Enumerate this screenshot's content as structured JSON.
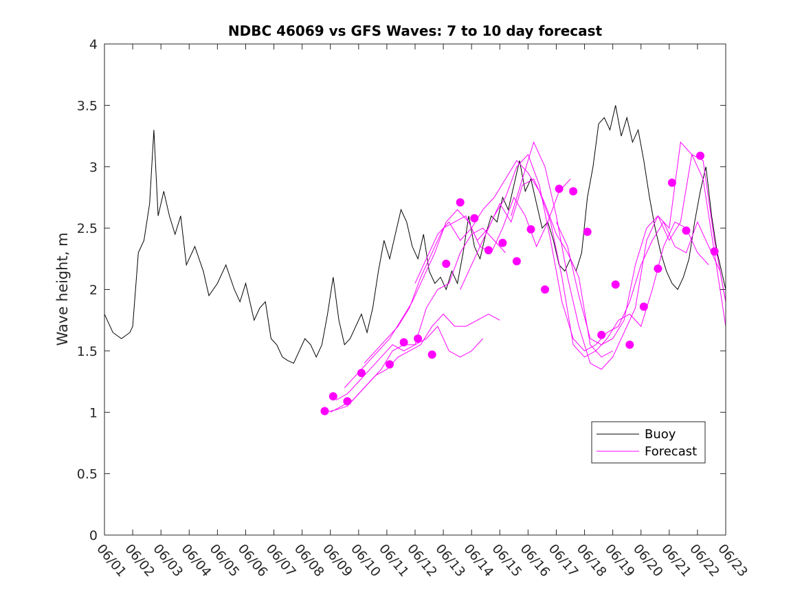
{
  "chart_data": {
    "type": "line",
    "title": "NDBC 46069 vs GFS Waves: 7 to 10 day forecast",
    "xlabel": "",
    "ylabel": "Wave height, m",
    "ylim": [
      0,
      4
    ],
    "xlim": [
      "06/01",
      "06/23"
    ],
    "xtick_labels": [
      "06/01",
      "06/02",
      "06/03",
      "06/04",
      "06/05",
      "06/06",
      "06/07",
      "06/08",
      "06/09",
      "06/10",
      "06/11",
      "06/12",
      "06/13",
      "06/14",
      "06/15",
      "06/16",
      "06/17",
      "06/18",
      "06/19",
      "06/20",
      "06/21",
      "06/22",
      "06/23"
    ],
    "ytick_labels": [
      "0",
      "0.5",
      "1",
      "1.5",
      "2",
      "2.5",
      "3",
      "3.5",
      "4"
    ],
    "yticks": [
      0,
      0.5,
      1,
      1.5,
      2,
      2.5,
      3,
      3.5,
      4
    ],
    "grid": false,
    "legend": {
      "position": "bottom-right",
      "entries": [
        "Buoy",
        "Forecast"
      ]
    },
    "colors": {
      "buoy": "#000000",
      "forecast": "#ff00ff",
      "axis": "#262626"
    },
    "buoy_series": {
      "name": "Buoy",
      "points": [
        [
          0.0,
          1.8
        ],
        [
          0.3,
          1.65
        ],
        [
          0.6,
          1.6
        ],
        [
          0.9,
          1.65
        ],
        [
          1.0,
          1.7
        ],
        [
          1.2,
          2.3
        ],
        [
          1.4,
          2.4
        ],
        [
          1.6,
          2.7
        ],
        [
          1.75,
          3.3
        ],
        [
          1.9,
          2.6
        ],
        [
          2.1,
          2.8
        ],
        [
          2.3,
          2.6
        ],
        [
          2.5,
          2.45
        ],
        [
          2.7,
          2.6
        ],
        [
          2.9,
          2.2
        ],
        [
          3.2,
          2.35
        ],
        [
          3.5,
          2.15
        ],
        [
          3.7,
          1.95
        ],
        [
          4.0,
          2.05
        ],
        [
          4.3,
          2.2
        ],
        [
          4.6,
          2.0
        ],
        [
          4.8,
          1.9
        ],
        [
          5.0,
          2.05
        ],
        [
          5.3,
          1.75
        ],
        [
          5.5,
          1.85
        ],
        [
          5.7,
          1.9
        ],
        [
          5.9,
          1.6
        ],
        [
          6.1,
          1.55
        ],
        [
          6.3,
          1.45
        ],
        [
          6.5,
          1.42
        ],
        [
          6.7,
          1.4
        ],
        [
          6.9,
          1.5
        ],
        [
          7.1,
          1.6
        ],
        [
          7.3,
          1.55
        ],
        [
          7.5,
          1.45
        ],
        [
          7.7,
          1.55
        ],
        [
          7.9,
          1.8
        ],
        [
          8.1,
          2.1
        ],
        [
          8.3,
          1.75
        ],
        [
          8.5,
          1.55
        ],
        [
          8.7,
          1.6
        ],
        [
          8.9,
          1.7
        ],
        [
          9.1,
          1.8
        ],
        [
          9.3,
          1.65
        ],
        [
          9.5,
          1.85
        ],
        [
          9.7,
          2.15
        ],
        [
          9.9,
          2.4
        ],
        [
          10.1,
          2.25
        ],
        [
          10.3,
          2.45
        ],
        [
          10.5,
          2.65
        ],
        [
          10.7,
          2.55
        ],
        [
          10.9,
          2.35
        ],
        [
          11.1,
          2.25
        ],
        [
          11.3,
          2.45
        ],
        [
          11.5,
          2.15
        ],
        [
          11.7,
          2.05
        ],
        [
          11.9,
          2.1
        ],
        [
          12.1,
          2.0
        ],
        [
          12.3,
          2.15
        ],
        [
          12.5,
          2.05
        ],
        [
          12.7,
          2.3
        ],
        [
          12.9,
          2.6
        ],
        [
          13.1,
          2.35
        ],
        [
          13.3,
          2.25
        ],
        [
          13.5,
          2.45
        ],
        [
          13.7,
          2.6
        ],
        [
          13.9,
          2.55
        ],
        [
          14.1,
          2.75
        ],
        [
          14.3,
          2.65
        ],
        [
          14.5,
          2.85
        ],
        [
          14.7,
          3.05
        ],
        [
          14.9,
          2.8
        ],
        [
          15.1,
          2.9
        ],
        [
          15.3,
          2.7
        ],
        [
          15.5,
          2.5
        ],
        [
          15.7,
          2.55
        ],
        [
          15.9,
          2.4
        ],
        [
          16.1,
          2.2
        ],
        [
          16.3,
          2.15
        ],
        [
          16.5,
          2.25
        ],
        [
          16.7,
          2.15
        ],
        [
          16.9,
          2.3
        ],
        [
          17.1,
          2.75
        ],
        [
          17.3,
          3.0
        ],
        [
          17.5,
          3.35
        ],
        [
          17.7,
          3.4
        ],
        [
          17.9,
          3.3
        ],
        [
          18.1,
          3.5
        ],
        [
          18.3,
          3.25
        ],
        [
          18.5,
          3.4
        ],
        [
          18.7,
          3.2
        ],
        [
          18.9,
          3.3
        ],
        [
          19.1,
          3.05
        ],
        [
          19.3,
          2.75
        ],
        [
          19.5,
          2.5
        ],
        [
          19.7,
          2.3
        ],
        [
          19.9,
          2.15
        ],
        [
          20.1,
          2.05
        ],
        [
          20.3,
          2.0
        ],
        [
          20.5,
          2.1
        ],
        [
          20.7,
          2.25
        ],
        [
          20.9,
          2.55
        ],
        [
          21.1,
          2.8
        ],
        [
          21.3,
          3.0
        ],
        [
          21.5,
          2.6
        ],
        [
          21.7,
          2.3
        ],
        [
          21.9,
          2.1
        ],
        [
          22.0,
          2.0
        ]
      ]
    },
    "forecast_series": [
      {
        "points": [
          [
            7.8,
            1.0
          ],
          [
            8.2,
            1.02
          ],
          [
            8.6,
            1.05
          ],
          [
            9.0,
            1.15
          ],
          [
            9.4,
            1.25
          ],
          [
            9.8,
            1.35
          ],
          [
            10.2,
            1.5
          ],
          [
            10.6,
            1.55
          ],
          [
            11.0,
            1.55
          ],
          [
            11.4,
            1.6
          ],
          [
            11.8,
            1.7
          ],
          [
            12.2,
            1.5
          ],
          [
            12.6,
            1.45
          ],
          [
            13.0,
            1.5
          ],
          [
            13.4,
            1.6
          ]
        ]
      },
      {
        "points": [
          [
            8.0,
            1.0
          ],
          [
            8.4,
            1.05
          ],
          [
            8.8,
            1.1
          ],
          [
            9.2,
            1.2
          ],
          [
            9.6,
            1.3
          ],
          [
            10.0,
            1.35
          ],
          [
            10.4,
            1.45
          ],
          [
            10.8,
            1.5
          ],
          [
            11.2,
            1.55
          ],
          [
            11.6,
            1.7
          ],
          [
            12.0,
            1.8
          ],
          [
            12.4,
            1.7
          ],
          [
            12.8,
            1.7
          ],
          [
            13.2,
            1.75
          ],
          [
            13.6,
            1.8
          ],
          [
            14.0,
            1.75
          ]
        ]
      },
      {
        "points": [
          [
            8.2,
            1.1
          ],
          [
            8.6,
            1.15
          ],
          [
            9.0,
            1.25
          ],
          [
            9.4,
            1.35
          ],
          [
            9.8,
            1.45
          ],
          [
            10.2,
            1.55
          ],
          [
            10.6,
            1.5
          ],
          [
            11.0,
            1.55
          ],
          [
            11.4,
            1.85
          ],
          [
            11.8,
            2.0
          ],
          [
            12.2,
            2.05
          ],
          [
            12.6,
            2.3
          ],
          [
            13.0,
            2.45
          ],
          [
            13.4,
            2.5
          ],
          [
            13.8,
            2.4
          ],
          [
            14.2,
            2.3
          ]
        ]
      },
      {
        "points": [
          [
            8.5,
            1.2
          ],
          [
            8.9,
            1.3
          ],
          [
            9.3,
            1.4
          ],
          [
            9.7,
            1.5
          ],
          [
            10.1,
            1.6
          ],
          [
            10.5,
            1.75
          ],
          [
            10.9,
            1.9
          ],
          [
            11.3,
            2.1
          ],
          [
            11.7,
            2.3
          ],
          [
            12.1,
            2.55
          ],
          [
            12.5,
            2.65
          ],
          [
            12.9,
            2.55
          ],
          [
            13.3,
            2.35
          ],
          [
            13.7,
            2.3
          ],
          [
            14.1,
            2.5
          ],
          [
            14.5,
            2.75
          ],
          [
            14.9,
            2.6
          ],
          [
            15.3,
            2.35
          ],
          [
            15.7,
            2.55
          ],
          [
            16.1,
            2.8
          ],
          [
            16.5,
            2.9
          ]
        ]
      },
      {
        "points": [
          [
            9.2,
            1.4
          ],
          [
            9.6,
            1.5
          ],
          [
            10.0,
            1.6
          ],
          [
            10.4,
            1.7
          ],
          [
            10.8,
            1.85
          ],
          [
            11.2,
            2.1
          ],
          [
            11.6,
            2.3
          ],
          [
            12.0,
            2.5
          ],
          [
            12.4,
            2.55
          ],
          [
            12.8,
            2.6
          ],
          [
            13.2,
            2.4
          ],
          [
            13.6,
            2.5
          ],
          [
            14.0,
            2.7
          ],
          [
            14.4,
            2.55
          ],
          [
            14.8,
            2.85
          ],
          [
            15.2,
            2.9
          ],
          [
            15.6,
            2.7
          ],
          [
            16.0,
            2.45
          ],
          [
            16.4,
            2.3
          ],
          [
            16.8,
            2.1
          ],
          [
            17.2,
            1.55
          ],
          [
            17.6,
            1.45
          ],
          [
            18.0,
            1.5
          ]
        ]
      },
      {
        "points": [
          [
            11.0,
            2.05
          ],
          [
            11.4,
            2.25
          ],
          [
            11.8,
            2.45
          ],
          [
            12.2,
            2.55
          ],
          [
            12.6,
            2.4
          ],
          [
            13.0,
            2.5
          ],
          [
            13.4,
            2.65
          ],
          [
            13.8,
            2.75
          ],
          [
            14.2,
            2.9
          ],
          [
            14.6,
            3.05
          ],
          [
            15.0,
            2.95
          ],
          [
            15.4,
            2.8
          ],
          [
            15.8,
            2.55
          ],
          [
            16.2,
            2.1
          ],
          [
            16.6,
            1.55
          ],
          [
            17.0,
            1.45
          ],
          [
            17.4,
            1.5
          ],
          [
            17.8,
            1.6
          ],
          [
            18.2,
            1.75
          ],
          [
            18.6,
            1.8
          ],
          [
            19.0,
            1.7
          ],
          [
            19.4,
            2.0
          ],
          [
            19.8,
            2.35
          ],
          [
            20.2,
            2.55
          ],
          [
            20.6,
            2.5
          ],
          [
            21.0,
            2.3
          ],
          [
            21.4,
            2.2
          ]
        ]
      },
      {
        "points": [
          [
            12.6,
            2.0
          ],
          [
            13.0,
            2.2
          ],
          [
            13.4,
            2.4
          ],
          [
            13.8,
            2.6
          ],
          [
            14.2,
            2.75
          ],
          [
            14.6,
            3.0
          ],
          [
            15.0,
            3.1
          ],
          [
            15.4,
            2.85
          ],
          [
            15.8,
            2.4
          ],
          [
            16.2,
            1.9
          ],
          [
            16.6,
            1.6
          ],
          [
            17.0,
            1.5
          ],
          [
            17.4,
            1.55
          ],
          [
            17.8,
            1.65
          ],
          [
            18.2,
            1.7
          ],
          [
            18.6,
            1.9
          ],
          [
            19.0,
            2.2
          ],
          [
            19.4,
            2.4
          ],
          [
            19.8,
            2.55
          ],
          [
            20.2,
            2.35
          ],
          [
            20.6,
            2.3
          ],
          [
            21.0,
            2.55
          ],
          [
            21.4,
            2.35
          ],
          [
            21.8,
            2.15
          ],
          [
            22.0,
            1.9
          ]
        ]
      },
      {
        "points": [
          [
            14.4,
            2.6
          ],
          [
            14.8,
            2.9
          ],
          [
            15.2,
            3.2
          ],
          [
            15.6,
            3.0
          ],
          [
            16.0,
            2.6
          ],
          [
            16.4,
            2.1
          ],
          [
            16.8,
            1.7
          ],
          [
            17.2,
            1.4
          ],
          [
            17.6,
            1.35
          ],
          [
            18.0,
            1.45
          ],
          [
            18.4,
            1.65
          ],
          [
            18.8,
            1.85
          ],
          [
            19.2,
            2.4
          ],
          [
            19.6,
            2.6
          ],
          [
            20.0,
            2.5
          ],
          [
            20.4,
            3.2
          ],
          [
            20.8,
            3.1
          ],
          [
            21.2,
            2.9
          ],
          [
            21.6,
            2.3
          ],
          [
            22.0,
            1.7
          ]
        ]
      },
      {
        "points": [
          [
            16.0,
            2.55
          ],
          [
            16.4,
            2.35
          ],
          [
            16.8,
            1.95
          ],
          [
            17.2,
            1.6
          ],
          [
            17.6,
            1.55
          ],
          [
            18.0,
            1.6
          ],
          [
            18.4,
            1.75
          ],
          [
            18.8,
            2.2
          ],
          [
            19.2,
            2.5
          ],
          [
            19.6,
            2.6
          ],
          [
            20.0,
            2.4
          ],
          [
            20.4,
            2.55
          ],
          [
            20.8,
            3.1
          ],
          [
            21.2,
            3.05
          ],
          [
            21.6,
            2.4
          ],
          [
            22.0,
            1.9
          ]
        ]
      }
    ],
    "forecast_markers": [
      [
        7.8,
        1.01
      ],
      [
        8.1,
        1.13
      ],
      [
        8.6,
        1.09
      ],
      [
        9.1,
        1.32
      ],
      [
        10.1,
        1.39
      ],
      [
        10.6,
        1.57
      ],
      [
        11.1,
        1.6
      ],
      [
        11.6,
        1.47
      ],
      [
        12.1,
        2.21
      ],
      [
        12.6,
        2.71
      ],
      [
        13.1,
        2.58
      ],
      [
        13.6,
        2.32
      ],
      [
        14.1,
        2.38
      ],
      [
        14.6,
        2.23
      ],
      [
        15.1,
        2.49
      ],
      [
        15.6,
        2.0
      ],
      [
        16.1,
        2.82
      ],
      [
        16.6,
        2.8
      ],
      [
        17.1,
        2.47
      ],
      [
        17.6,
        1.63
      ],
      [
        18.1,
        2.04
      ],
      [
        18.6,
        1.55
      ],
      [
        19.1,
        1.86
      ],
      [
        19.6,
        2.17
      ],
      [
        20.1,
        2.87
      ],
      [
        20.6,
        2.48
      ],
      [
        21.1,
        3.09
      ],
      [
        21.6,
        2.31
      ]
    ]
  }
}
